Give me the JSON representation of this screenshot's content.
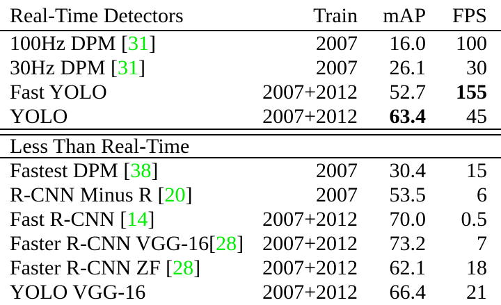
{
  "table": {
    "citation_color": "#00ee00",
    "rule_color": "#000000",
    "header": {
      "detector_col": "Real-Time Detectors",
      "train_col": "Train",
      "map_col": "mAP",
      "fps_col": "FPS"
    },
    "sections": [
      {
        "title": null,
        "rows": [
          {
            "name": "100Hz DPM ",
            "cite": "31",
            "train": "2007",
            "map": "16.0",
            "fps": "100",
            "bold": null
          },
          {
            "name": "30Hz DPM ",
            "cite": "31",
            "train": "2007",
            "map": "26.1",
            "fps": "30",
            "bold": null
          },
          {
            "name": "Fast YOLO",
            "cite": null,
            "train": "2007+2012",
            "map": "52.7",
            "fps": "155",
            "bold": "fps"
          },
          {
            "name": "YOLO",
            "cite": null,
            "train": "2007+2012",
            "map": "63.4",
            "fps": "45",
            "bold": "map"
          }
        ]
      },
      {
        "title": "Less Than Real-Time",
        "rows": [
          {
            "name": "Fastest DPM ",
            "cite": "38",
            "train": "2007",
            "map": "30.4",
            "fps": "15",
            "bold": null
          },
          {
            "name": "R-CNN Minus R ",
            "cite": "20",
            "train": "2007",
            "map": "53.5",
            "fps": "6",
            "bold": null
          },
          {
            "name": "Fast R-CNN ",
            "cite": "14",
            "train": "2007+2012",
            "map": "70.0",
            "fps": "0.5",
            "bold": null
          },
          {
            "name": "Faster R-CNN VGG-16",
            "cite": "28",
            "train": "2007+2012",
            "map": "73.2",
            "fps": "7",
            "bold": null
          },
          {
            "name": "Faster R-CNN ZF ",
            "cite": "28",
            "train": "2007+2012",
            "map": "62.1",
            "fps": "18",
            "bold": null
          },
          {
            "name": "YOLO VGG-16",
            "cite": null,
            "train": "2007+2012",
            "map": "66.4",
            "fps": "21",
            "bold": null
          }
        ]
      }
    ]
  }
}
